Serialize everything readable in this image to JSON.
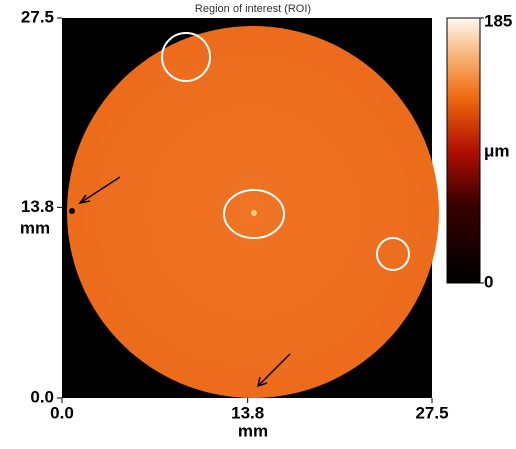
{
  "chart_data": {
    "type": "image",
    "title": "Region of interest (ROI)",
    "x_label": "mm",
    "y_label": "mm",
    "xlim": [
      0,
      27.5
    ],
    "xticks": [
      {
        "value": 0,
        "label": "0.0"
      },
      13.8,
      27.5
    ],
    "ylim": [
      0,
      27.5
    ],
    "yticks": [
      {
        "value": 0,
        "label": "0.0"
      },
      13.8,
      27.5
    ],
    "colorbar": {
      "label": "μm",
      "clim": [
        0,
        185
      ],
      "ticks": [
        0,
        185
      ]
    }
  }
}
